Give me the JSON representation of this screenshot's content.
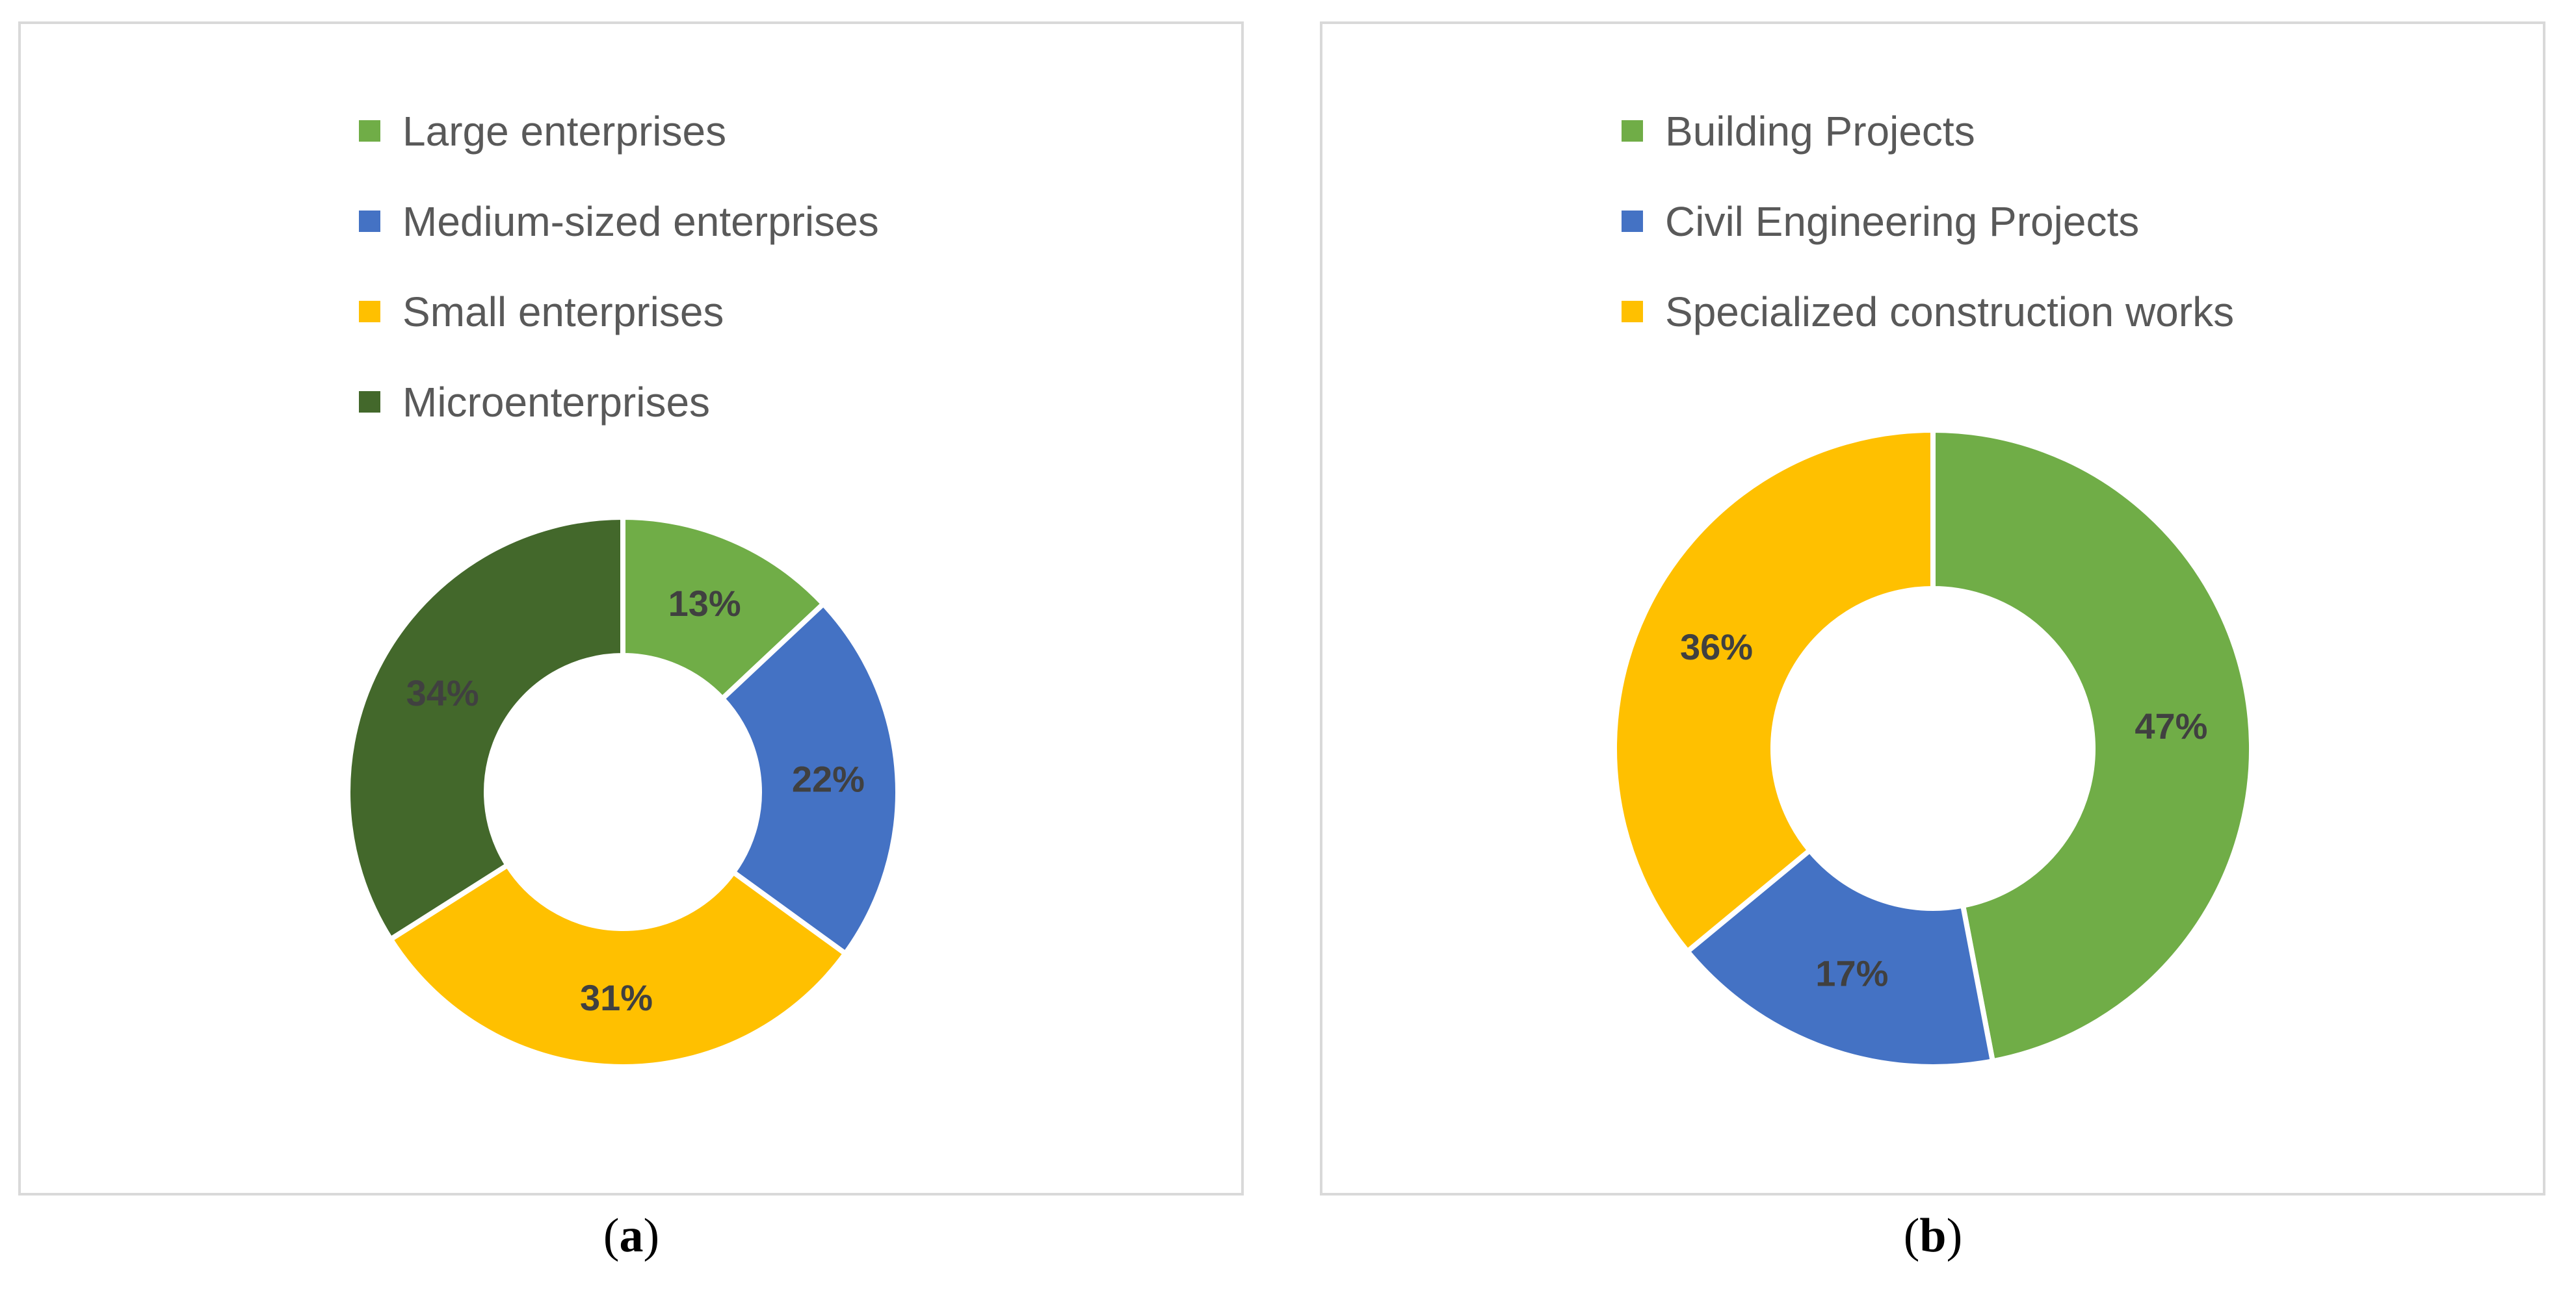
{
  "chart_data": [
    {
      "id": "a",
      "type": "pie",
      "variant": "donut",
      "panel_label": "a",
      "legend_position": "top",
      "slices": [
        {
          "name": "Large enterprises",
          "value": 13,
          "label": "13%",
          "color": "#70ad47"
        },
        {
          "name": "Medium-sized enterprises",
          "value": 22,
          "label": "22%",
          "color": "#4472c4"
        },
        {
          "name": "Small enterprises",
          "value": 31,
          "label": "31%",
          "color": "#ffc000"
        },
        {
          "name": "Microenterprises",
          "value": 34,
          "label": "34%",
          "color": "#43682b"
        }
      ]
    },
    {
      "id": "b",
      "type": "pie",
      "variant": "donut",
      "panel_label": "b",
      "legend_position": "top",
      "slices": [
        {
          "name": "Building Projects",
          "value": 47,
          "label": "47%",
          "color": "#70ad47"
        },
        {
          "name": "Civil Engineering Projects",
          "value": 17,
          "label": "17%",
          "color": "#4472c4"
        },
        {
          "name": "Specialized construction works",
          "value": 36,
          "label": "36%",
          "color": "#ffc000"
        }
      ]
    }
  ],
  "captions": {
    "a": {
      "open": "(",
      "letter": "a",
      "close": ")"
    },
    "b": {
      "open": "(",
      "letter": "b",
      "close": ")"
    }
  }
}
